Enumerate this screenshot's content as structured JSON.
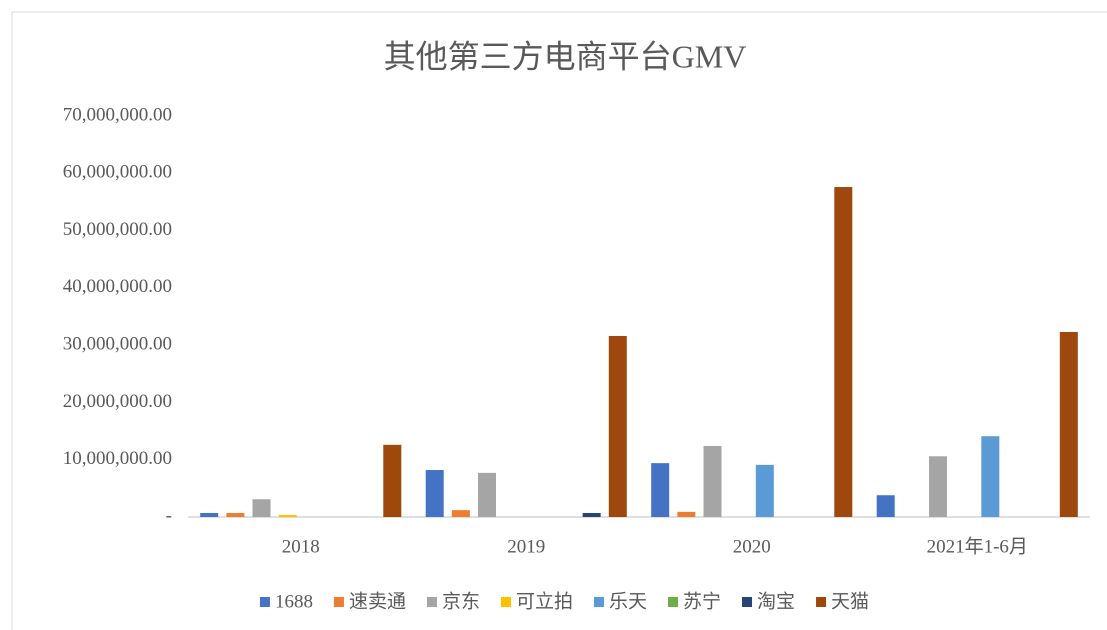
{
  "chart_data": {
    "type": "bar",
    "title": "其他第三方电商平台GMV",
    "categories": [
      "2018",
      "2019",
      "2020",
      "2021年1-6月"
    ],
    "series": [
      {
        "name": "1688",
        "color": "#4472c4",
        "values": [
          700000,
          8200000,
          9400000,
          3800000
        ]
      },
      {
        "name": "速卖通",
        "color": "#ed7d31",
        "values": [
          700000,
          1200000,
          900000,
          null
        ]
      },
      {
        "name": "京东",
        "color": "#a5a5a5",
        "values": [
          3100000,
          7700000,
          12400000,
          10600000
        ]
      },
      {
        "name": "可立拍",
        "color": "#ffc000",
        "values": [
          350000,
          null,
          null,
          null
        ]
      },
      {
        "name": "乐天",
        "color": "#5b9bd5",
        "values": [
          null,
          null,
          9100000,
          14100000
        ]
      },
      {
        "name": "苏宁",
        "color": "#70ad47",
        "values": [
          null,
          null,
          null,
          null
        ]
      },
      {
        "name": "淘宝",
        "color": "#264478",
        "values": [
          null,
          700000,
          null,
          null
        ]
      },
      {
        "name": "天猫",
        "color": "#9e480e",
        "values": [
          12600000,
          31600000,
          57600000,
          32300000
        ]
      }
    ],
    "ylim": [
      0,
      70000000
    ],
    "yticks": [
      {
        "value": 0,
        "label": "-"
      },
      {
        "value": 10000000,
        "label": "10,000,000.00"
      },
      {
        "value": 20000000,
        "label": "20,000,000.00"
      },
      {
        "value": 30000000,
        "label": "30,000,000.00"
      },
      {
        "value": 40000000,
        "label": "40,000,000.00"
      },
      {
        "value": 50000000,
        "label": "50,000,000.00"
      },
      {
        "value": 60000000,
        "label": "60,000,000.00"
      },
      {
        "value": 70000000,
        "label": "70,000,000.00"
      }
    ],
    "grid": false,
    "legend": "bottom"
  }
}
